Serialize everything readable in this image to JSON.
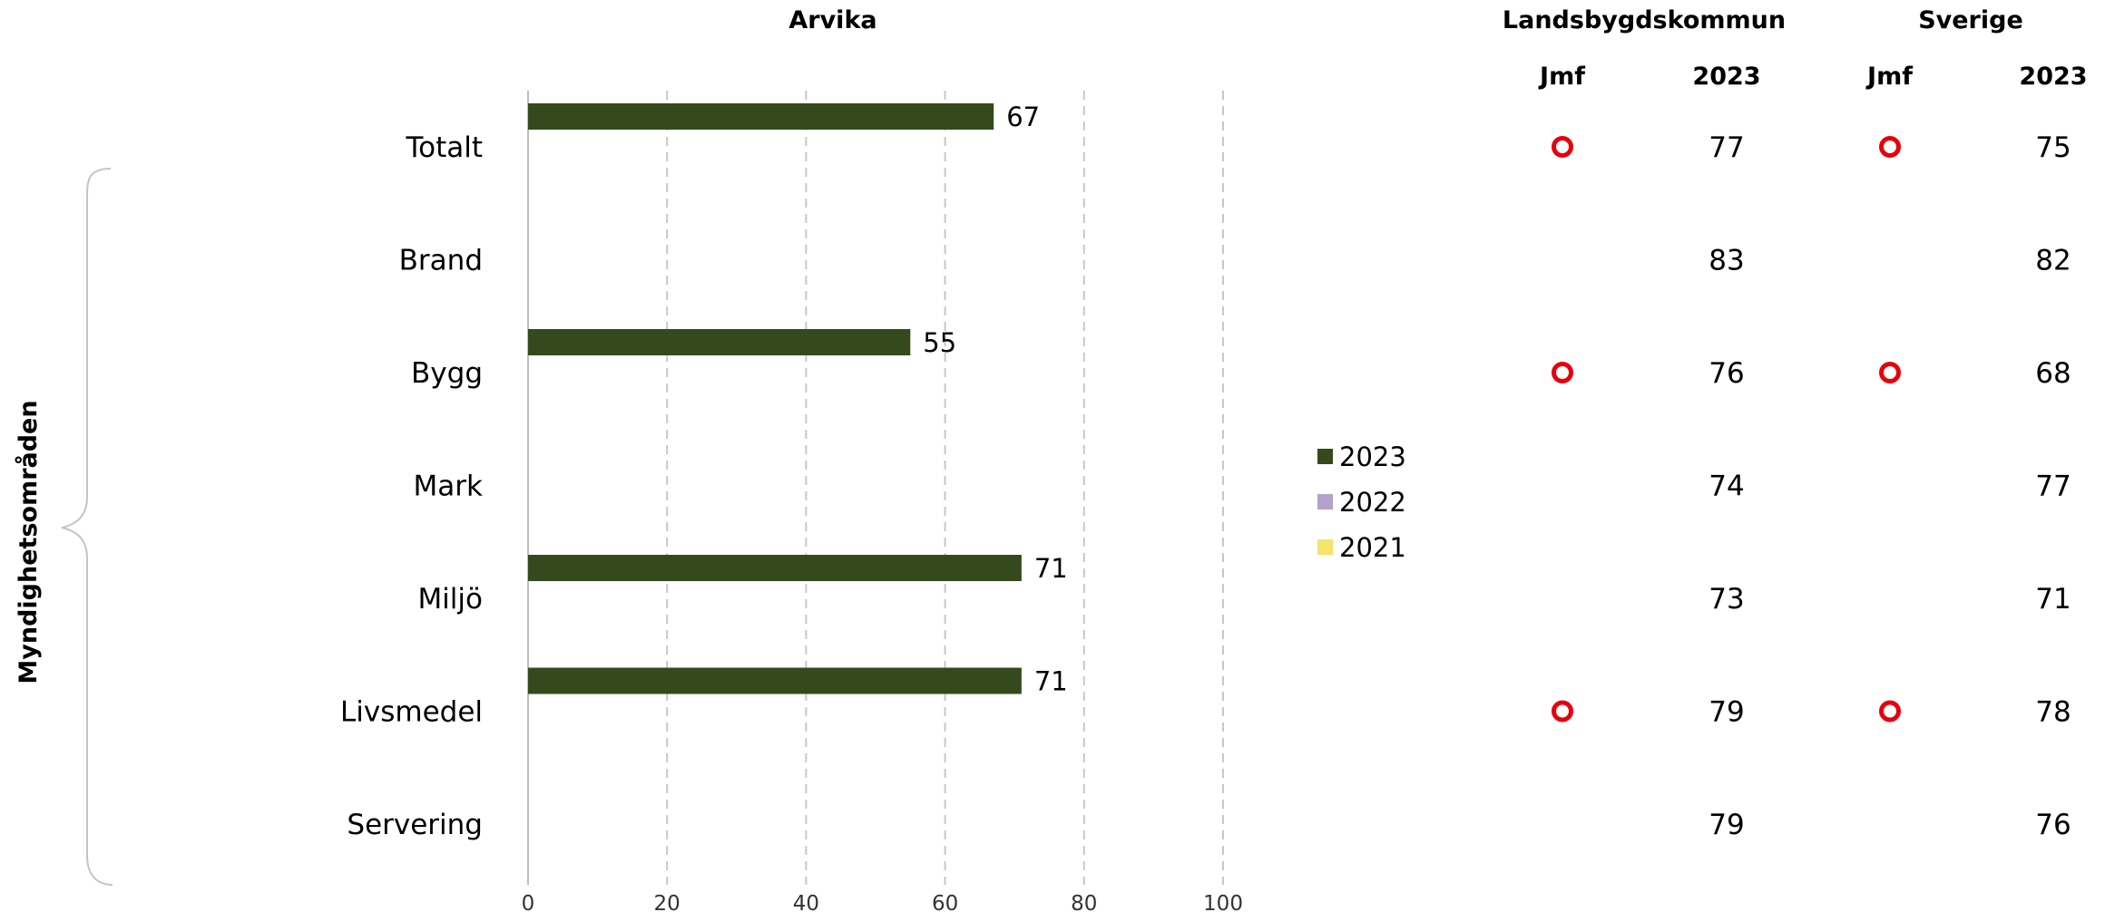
{
  "chart_data": {
    "type": "bar",
    "orientation": "horizontal",
    "title": "Arvika",
    "axis_group_label": "Myndighetsområden",
    "categories": [
      "Totalt",
      "Brand",
      "Bygg",
      "Mark",
      "Miljö",
      "Livsmedel",
      "Servering"
    ],
    "series": [
      {
        "name": "2023",
        "color": "#344a1c",
        "values": [
          67,
          null,
          55,
          null,
          71,
          71,
          null
        ]
      },
      {
        "name": "2022",
        "color": "#b4a0c8",
        "values": [
          null,
          null,
          null,
          null,
          null,
          null,
          null
        ]
      },
      {
        "name": "2021",
        "color": "#f5e36a",
        "values": [
          null,
          null,
          null,
          null,
          null,
          null,
          null
        ]
      }
    ],
    "data_labels": [
      "67",
      "",
      "55",
      "",
      "71",
      "71",
      ""
    ],
    "x_ticks": [
      "0",
      "20",
      "40",
      "60",
      "80",
      "100"
    ],
    "xlim": [
      0,
      100
    ],
    "grid": "vertical dashed",
    "legend_position": "right",
    "comparison": {
      "groups": [
        {
          "title": "Landsbygdskommun",
          "jmf_header": "Jmf",
          "year_header": "2023",
          "values": [
            "77",
            "83",
            "76",
            "74",
            "73",
            "79",
            "79"
          ],
          "markers": [
            true,
            false,
            true,
            false,
            false,
            true,
            false
          ]
        },
        {
          "title": "Sverige",
          "jmf_header": "Jmf",
          "year_header": "2023",
          "values": [
            "75",
            "82",
            "68",
            "77",
            "71",
            "78",
            "76"
          ],
          "markers": [
            true,
            false,
            true,
            false,
            false,
            true,
            false
          ]
        }
      ],
      "marker_color": "#e8000b"
    }
  }
}
